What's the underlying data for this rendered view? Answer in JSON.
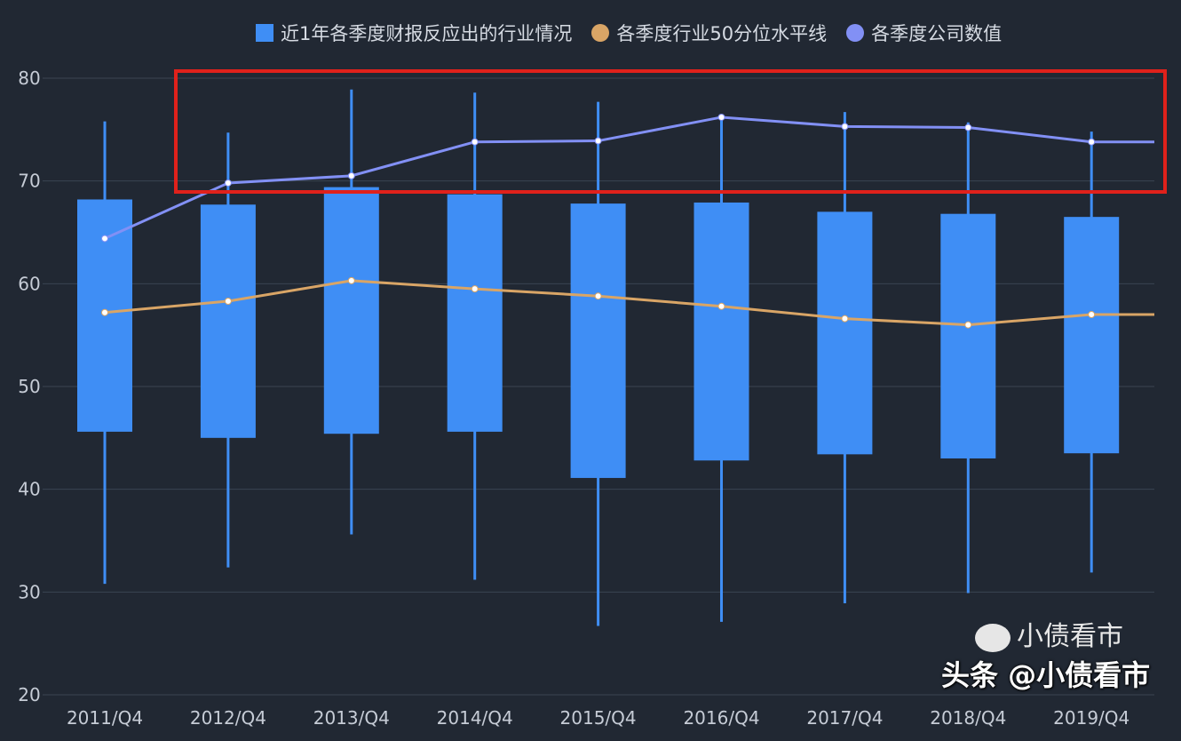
{
  "chart_data": {
    "type": "boxplot",
    "categories": [
      "2011/Q4",
      "2012/Q4",
      "2013/Q4",
      "2014/Q4",
      "2015/Q4",
      "2016/Q4",
      "2017/Q4",
      "2018/Q4",
      "2019/Q4"
    ],
    "ylim": [
      20,
      80
    ],
    "yticks": [
      20,
      30,
      40,
      50,
      60,
      70,
      80
    ],
    "grid": true,
    "legend_position": "top",
    "series": [
      {
        "name": "近1年各季度财报反应出的行业情况",
        "kind": "box",
        "color": "#3f8ef5",
        "values": [
          {
            "low": 30.8,
            "q1": 45.6,
            "q3": 68.2,
            "high": 75.8
          },
          {
            "low": 32.4,
            "q1": 45.0,
            "q3": 67.7,
            "high": 74.7
          },
          {
            "low": 35.6,
            "q1": 45.4,
            "q3": 69.4,
            "high": 78.9
          },
          {
            "low": 31.2,
            "q1": 45.6,
            "q3": 68.7,
            "high": 78.6
          },
          {
            "low": 26.7,
            "q1": 41.1,
            "q3": 67.8,
            "high": 77.7
          },
          {
            "low": 27.1,
            "q1": 42.8,
            "q3": 67.9,
            "high": 76.5
          },
          {
            "low": 28.9,
            "q1": 43.4,
            "q3": 67.0,
            "high": 76.7
          },
          {
            "low": 29.9,
            "q1": 43.0,
            "q3": 66.8,
            "high": 75.7
          },
          {
            "low": 31.9,
            "q1": 43.5,
            "q3": 66.5,
            "high": 74.8
          }
        ]
      },
      {
        "name": "各季度行业50分位水平线",
        "kind": "line",
        "color": "#d9a566",
        "values": [
          57.2,
          58.3,
          60.3,
          59.5,
          58.8,
          57.8,
          56.6,
          56.0,
          57.0
        ]
      },
      {
        "name": "各季度公司数值",
        "kind": "line",
        "color": "#8290f5",
        "values": [
          64.4,
          69.8,
          70.5,
          73.8,
          73.9,
          76.2,
          75.3,
          75.2,
          73.8
        ]
      }
    ],
    "annotation": {
      "type": "highlight-rectangle",
      "color": "#e0211b"
    }
  },
  "watermark": {
    "wechat": "小债看市",
    "toutiao": "头条 @小债看市"
  }
}
